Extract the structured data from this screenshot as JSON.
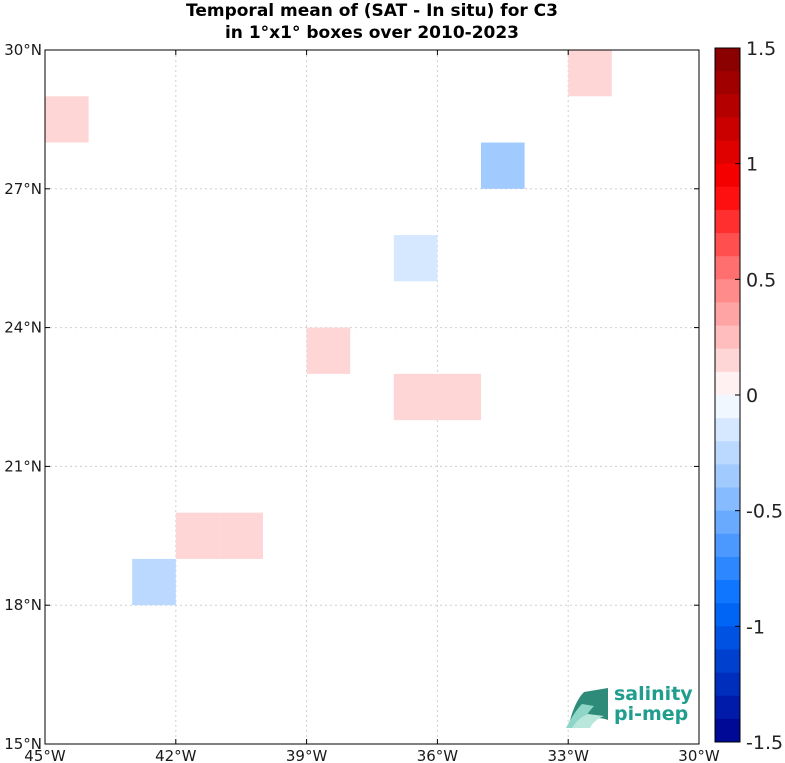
{
  "title_line1": "Temporal mean of (SAT - In situ) for C3",
  "title_line2": "in 1°x1° boxes over 2010-2023",
  "logo": {
    "line1": "salinity",
    "line2": "pi-mep"
  },
  "chart_data": {
    "type": "heatmap",
    "title": "Temporal mean of (SAT - In situ) for C3 in 1°x1° boxes over 2010-2023",
    "xlim": [
      -45,
      -30
    ],
    "ylim": [
      15,
      30
    ],
    "x_ticks": [
      -45,
      -42,
      -39,
      -36,
      -33,
      -30
    ],
    "x_tick_labels": [
      "45°W",
      "42°W",
      "39°W",
      "36°W",
      "33°W",
      "30°W"
    ],
    "y_ticks": [
      15,
      18,
      21,
      24,
      27,
      30
    ],
    "y_tick_labels": [
      "15°N",
      "18°N",
      "21°N",
      "24°N",
      "27°N",
      "30°N"
    ],
    "grid": true,
    "colorbar": {
      "range": [
        -1.5,
        1.5
      ],
      "ticks": [
        1.5,
        1,
        0.5,
        0,
        -0.5,
        -1,
        -1.5
      ],
      "tick_labels": [
        "1.5",
        "1",
        "0.5",
        "0",
        "-0.5",
        "-1",
        "-1.5"
      ],
      "levels": 30
    },
    "boxes": [
      {
        "lon": -45,
        "lat": 28,
        "value": 0.15
      },
      {
        "lon": -33,
        "lat": 29,
        "value": 0.15
      },
      {
        "lon": -35,
        "lat": 27,
        "value": -0.35
      },
      {
        "lon": -37,
        "lat": 25,
        "value": -0.15
      },
      {
        "lon": -39,
        "lat": 23,
        "value": 0.15
      },
      {
        "lon": -37,
        "lat": 22,
        "value": 0.15
      },
      {
        "lon": -36,
        "lat": 22,
        "value": 0.15
      },
      {
        "lon": -42,
        "lat": 19,
        "value": 0.15
      },
      {
        "lon": -41,
        "lat": 19,
        "value": 0.15
      },
      {
        "lon": -43,
        "lat": 18,
        "value": -0.25
      }
    ]
  }
}
